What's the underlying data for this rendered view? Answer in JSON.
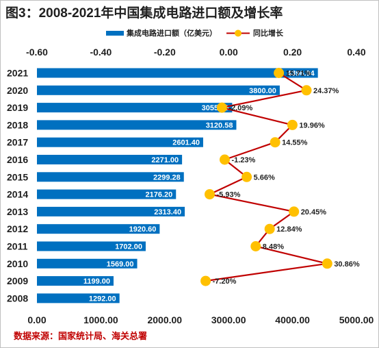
{
  "title": "图3：2008-2021年中国集成电路进口额及增长率",
  "source": "数据来源：国家统计局、海关总署",
  "colors": {
    "bar": "#0070c0",
    "line": "#c00000",
    "marker": "#ffc000",
    "source_text": "#c00000"
  },
  "legend": {
    "bar_label": "集成电路进口额（亿美元）",
    "line_label": "同比增长"
  },
  "chart_data": {
    "type": "bar",
    "orientation": "horizontal",
    "categories": [
      "2021",
      "2020",
      "2019",
      "2018",
      "2017",
      "2016",
      "2015",
      "2014",
      "2013",
      "2012",
      "2011",
      "2010",
      "2009",
      "2008"
    ],
    "series": [
      {
        "name": "集成电路进口额（亿美元）",
        "type": "bar",
        "axis": "bottom",
        "values": [
          4396.94,
          3800.0,
          3055.5,
          3120.58,
          2601.4,
          2271.0,
          2299.28,
          2176.2,
          2313.4,
          1920.6,
          1702.0,
          1569.0,
          1199.0,
          1292.0
        ],
        "labels": [
          "4396.94",
          "3800.00",
          "3055.50",
          "3120.58",
          "2601.40",
          "2271.00",
          "2299.28",
          "2176.20",
          "2313.40",
          "1920.60",
          "1702.00",
          "1569.00",
          "1199.00",
          "1292.00"
        ]
      },
      {
        "name": "同比增长",
        "type": "line",
        "axis": "top",
        "values": [
          0.1571,
          0.2437,
          -0.0209,
          0.1996,
          0.1455,
          -0.0123,
          0.0566,
          -0.0593,
          0.2045,
          0.1284,
          0.0848,
          0.3086,
          -0.072,
          null
        ],
        "labels": [
          "15.71%",
          "24.37%",
          "-2.09%",
          "19.96%",
          "14.55%",
          "-1.23%",
          "5.66%",
          "-5.93%",
          "20.45%",
          "12.84%",
          "8.48%",
          "30.86%",
          "-7.20%",
          ""
        ]
      }
    ],
    "bottom_axis": {
      "range": [
        0,
        5000
      ],
      "ticks": [
        0,
        1000,
        2000,
        3000,
        4000,
        5000
      ],
      "tick_labels": [
        "0.00",
        "1000.00",
        "2000.00",
        "3000.00",
        "4000.00",
        "5000.00"
      ]
    },
    "top_axis": {
      "range": [
        -0.6,
        0.4
      ],
      "ticks": [
        -0.6,
        -0.4,
        -0.2,
        0,
        0.2,
        0.4
      ],
      "tick_labels": [
        "-0.60",
        "-0.40",
        "-0.20",
        "0.00",
        "0.20",
        "0.40"
      ]
    },
    "grid": false,
    "legend_position": "top"
  }
}
